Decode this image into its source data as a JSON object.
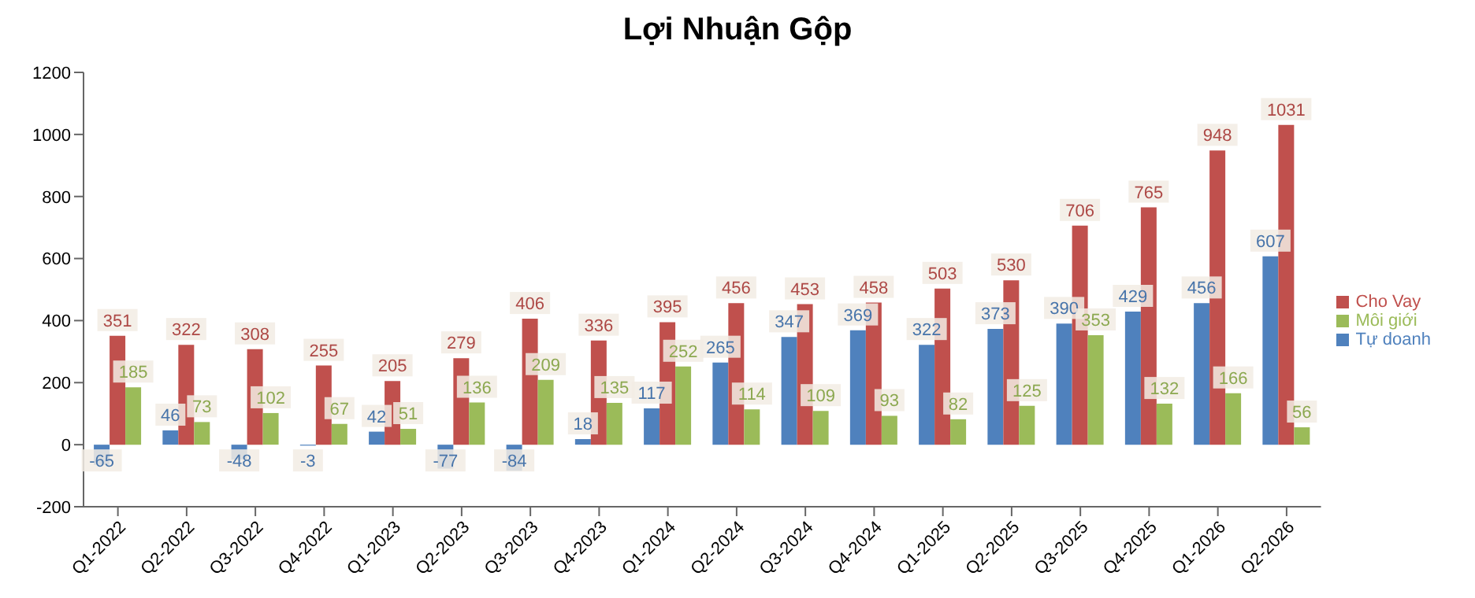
{
  "chart_data": {
    "type": "bar",
    "title": "Lợi Nhuận Gộp",
    "categories": [
      "Q1-2022",
      "Q2-2022",
      "Q3-2022",
      "Q4-2022",
      "Q1-2023",
      "Q2-2023",
      "Q3-2023",
      "Q4-2023",
      "Q1-2024",
      "Q2-2024",
      "Q3-2024",
      "Q4-2024",
      "Q1-2025",
      "Q2-2025",
      "Q3-2025",
      "Q4-2025",
      "Q1-2026",
      "Q2-2026"
    ],
    "series": [
      {
        "name": "Tự doanh",
        "color": "#4f81bd",
        "values": [
          -65,
          46,
          -48,
          -3,
          42,
          -77,
          -84,
          18,
          117,
          265,
          347,
          369,
          322,
          373,
          390,
          429,
          456,
          607
        ]
      },
      {
        "name": "Cho Vay",
        "color": "#c0504d",
        "values": [
          351,
          322,
          308,
          255,
          205,
          279,
          406,
          336,
          395,
          456,
          453,
          458,
          503,
          530,
          706,
          765,
          948,
          1031
        ]
      },
      {
        "name": "Môi giới",
        "color": "#9bbb59",
        "values": [
          185,
          73,
          102,
          67,
          51,
          136,
          209,
          135,
          252,
          114,
          109,
          93,
          82,
          125,
          353,
          132,
          166,
          56
        ]
      }
    ],
    "ylim": [
      -200,
      1200
    ],
    "yticks": [
      -200,
      0,
      200,
      400,
      600,
      800,
      1000,
      1200
    ],
    "data_labels": true,
    "legend": "right",
    "grid": false
  }
}
